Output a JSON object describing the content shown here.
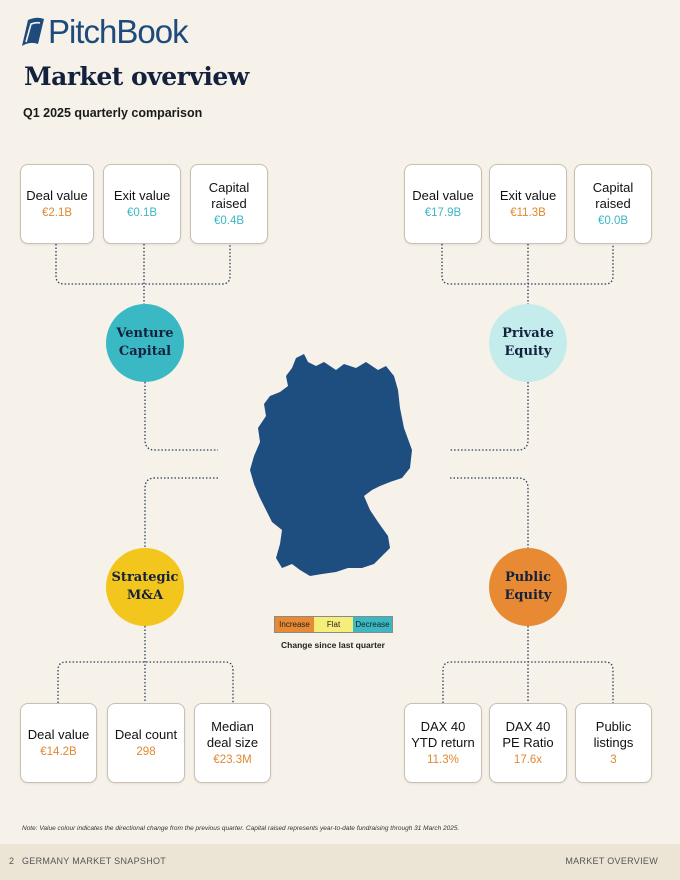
{
  "brand": {
    "name": "PitchBook"
  },
  "title": "Market overview",
  "subtitle": "Q1 2025 quarterly comparison",
  "sections": {
    "vc": {
      "label_line1": "Venture",
      "label_line2": "Capital",
      "color": "#3ab9c5",
      "cards": [
        {
          "label": "Deal value",
          "value": "€2.1B",
          "tone": "orange"
        },
        {
          "label": "Exit value",
          "value": "€0.1B",
          "tone": "blue"
        },
        {
          "label": "Capital raised",
          "value": "€0.4B",
          "tone": "blue"
        }
      ]
    },
    "pe": {
      "label_line1": "Private",
      "label_line2": "Equity",
      "color": "#c4ecec",
      "cards": [
        {
          "label": "Deal value",
          "value": "€17.9B",
          "tone": "blue"
        },
        {
          "label": "Exit value",
          "value": "€11.3B",
          "tone": "orange"
        },
        {
          "label": "Capital raised",
          "value": "€0.0B",
          "tone": "blue"
        }
      ]
    },
    "ma": {
      "label_line1": "Strategic",
      "label_line2": "M&A",
      "color": "#f3c61d",
      "cards": [
        {
          "label": "Deal value",
          "value": "€14.2B",
          "tone": "orange"
        },
        {
          "label": "Deal count",
          "value": "298",
          "tone": "orange"
        },
        {
          "label": "Median deal size",
          "value": "€23.3M",
          "tone": "orange"
        }
      ]
    },
    "public": {
      "label_line1": "Public",
      "label_line2": "Equity",
      "color": "#e88a33",
      "cards": [
        {
          "label": "DAX 40 YTD return",
          "value": "11.3%",
          "tone": "orange"
        },
        {
          "label": "DAX 40 PE Ratio",
          "value": "17.6x",
          "tone": "orange"
        },
        {
          "label": "Public listings",
          "value": "3",
          "tone": "orange"
        }
      ]
    }
  },
  "legend": {
    "items": [
      {
        "label": "Increase",
        "color": "#e88a33"
      },
      {
        "label": "Flat",
        "color": "#f6ee7a"
      },
      {
        "label": "Decrease",
        "color": "#3ab9c5"
      }
    ],
    "caption": "Change since last quarter"
  },
  "note": "Note: Value colour indicates the directional change from the previous quarter. Capital raised represents year-to-date fundraising through 31 March 2025.",
  "footer": {
    "page": "2",
    "doc_title": "GERMANY MARKET SNAPSHOT",
    "section": "MARKET OVERVIEW"
  },
  "map_color": "#1e4d80"
}
